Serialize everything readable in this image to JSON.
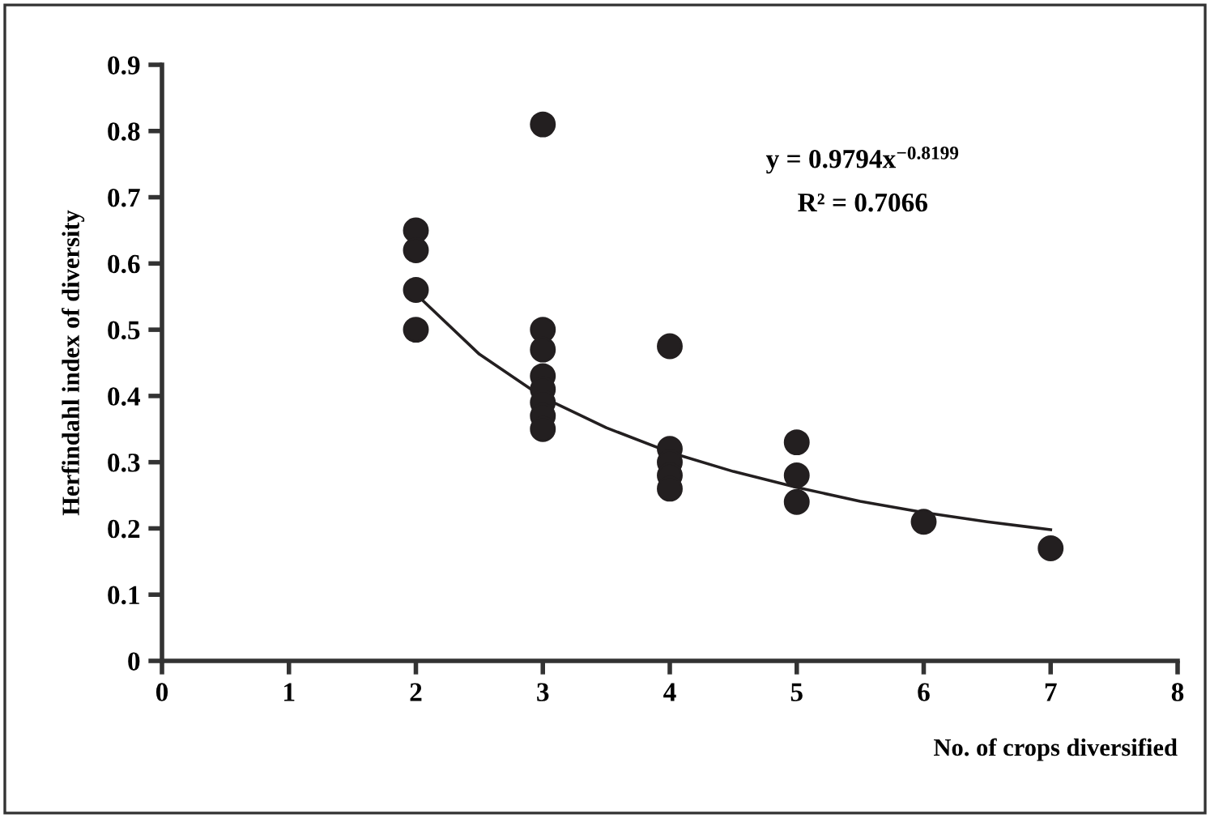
{
  "chart_data": {
    "type": "scatter",
    "xlabel": "No. of crops diversified",
    "ylabel": "Herfindahl index of diversity",
    "annotations": [
      "y = 0.9794x$^{−0.8199}$",
      "R² = 0.7066"
    ],
    "series": [
      {
        "color": "#231f20",
        "marker": "circle",
        "x": [
          2,
          2,
          2,
          2,
          3,
          3,
          3,
          3,
          3,
          3,
          3,
          3,
          4,
          4,
          4,
          4,
          4,
          5,
          5,
          5,
          6,
          7
        ],
        "values": [
          0.65,
          0.62,
          0.56,
          0.5,
          0.81,
          0.5,
          0.47,
          0.43,
          0.41,
          0.39,
          0.37,
          0.35,
          0.475,
          0.32,
          0.3,
          0.28,
          0.26,
          0.33,
          0.28,
          0.24,
          0.21,
          0.17
        ]
      },
      {
        "type": "line",
        "color": "#231f20",
        "marker": "none",
        "line_style": "solid",
        "x": [
          2,
          2.5,
          3,
          3.5,
          4,
          4.5,
          5,
          5.5,
          6,
          6.5,
          7
        ],
        "values": [
          0.554,
          0.463,
          0.398,
          0.352,
          0.315,
          0.286,
          0.262,
          0.241,
          0.224,
          0.21,
          0.198
        ]
      }
    ],
    "xlim": [
      0,
      8
    ],
    "xticks": [
      0,
      1,
      2,
      3,
      4,
      5,
      6,
      7,
      8
    ],
    "ylim": [
      0,
      0.9
    ],
    "yticks": [
      0,
      0.1,
      0.2,
      0.3,
      0.4,
      0.5,
      0.6,
      0.7,
      0.8,
      0.9
    ],
    "grid": false,
    "legend": false
  }
}
